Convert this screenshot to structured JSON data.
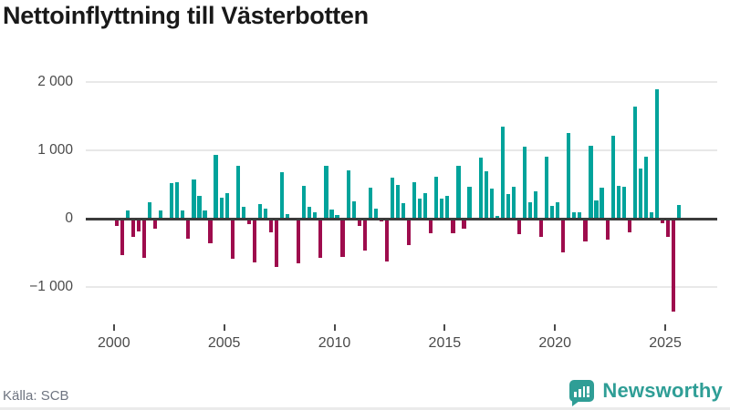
{
  "title": "Nettoinflyttning till Västerbotten",
  "footer": {
    "source": "Källa: SCB",
    "brand": "Newsworthy"
  },
  "colors": {
    "positive_bar": "#00a39b",
    "negative_bar": "#9e0c4d",
    "grid": "#e8e8e8",
    "zero_line": "#3b3b3b",
    "axis_text": "#4a4a4a",
    "title_text": "#191919",
    "source_text": "#6e7480",
    "brand_teal": "#2f9e96",
    "background": "#ffffff"
  },
  "chart_data": {
    "type": "bar",
    "title": "Nettoinflyttning till Västerbotten",
    "xlabel": "",
    "ylabel": "",
    "frequency": "quarterly",
    "period_start": "2000-Q1",
    "period_end": "2025-Q3",
    "values": [
      -100,
      -530,
      115,
      -260,
      -185,
      -570,
      240,
      -140,
      125,
      0,
      525,
      540,
      125,
      -290,
      570,
      340,
      115,
      -365,
      935,
      310,
      370,
      -580,
      770,
      175,
      -80,
      -645,
      220,
      145,
      -200,
      -700,
      675,
      65,
      0,
      -650,
      475,
      170,
      90,
      -570,
      770,
      135,
      55,
      -555,
      710,
      255,
      -100,
      -465,
      460,
      150,
      -35,
      -630,
      600,
      500,
      230,
      -380,
      535,
      300,
      380,
      -215,
      615,
      295,
      330,
      -215,
      780,
      -145,
      470,
      0,
      890,
      695,
      445,
      45,
      1345,
      355,
      465,
      -220,
      1055,
      245,
      400,
      -265,
      910,
      190,
      235,
      -490,
      1255,
      90,
      90,
      -335,
      1065,
      265,
      455,
      -300,
      1220,
      475,
      465,
      -200,
      1635,
      735,
      910,
      90,
      1900,
      -70,
      -265,
      -1355,
      200
    ],
    "x_ticks": [
      {
        "label": "2000",
        "year": 2000
      },
      {
        "label": "2005",
        "year": 2005
      },
      {
        "label": "2010",
        "year": 2010
      },
      {
        "label": "2015",
        "year": 2015
      },
      {
        "label": "2020",
        "year": 2020
      },
      {
        "label": "2025",
        "year": 2025
      }
    ],
    "y_ticks": [
      {
        "label": "2 000",
        "value": 2000
      },
      {
        "label": "1 000",
        "value": 1000
      },
      {
        "label": "0",
        "value": 0
      },
      {
        "label": "−1 000",
        "value": -1000
      }
    ],
    "ylim": [
      -1500,
      2100
    ],
    "grid": "horizontal",
    "legend": "none"
  }
}
